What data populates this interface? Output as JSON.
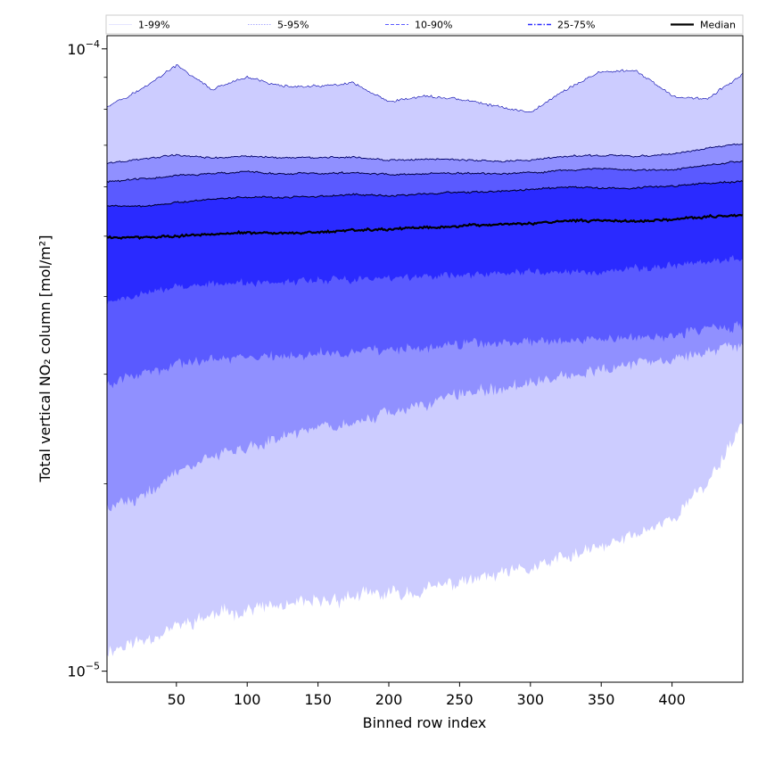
{
  "chart_data": {
    "type": "area",
    "xlabel": "Binned row index",
    "ylabel": "Total vertical NO₂ column [mol/m²]",
    "y_scale": "log",
    "xlim": [
      1,
      450
    ],
    "ylim": [
      9.6e-06,
      0.000105
    ],
    "x_ticks": [
      50,
      100,
      150,
      200,
      250,
      300,
      350,
      400
    ],
    "y_ticks": [
      {
        "value": 0.0001,
        "base": "10",
        "exp": "−4"
      },
      {
        "value": 1e-05,
        "base": "10",
        "exp": "−5"
      }
    ],
    "grid": false,
    "legend_position": "top",
    "x": [
      1,
      25,
      50,
      75,
      100,
      125,
      150,
      175,
      200,
      225,
      250,
      275,
      300,
      325,
      350,
      375,
      400,
      425,
      450
    ],
    "bands": [
      {
        "name": "1-99%",
        "color": "#ccccff",
        "lower": [
          1.08e-05,
          1.12e-05,
          1.18e-05,
          1.23e-05,
          1.26e-05,
          1.27e-05,
          1.29e-05,
          1.32e-05,
          1.33e-05,
          1.35e-05,
          1.39e-05,
          1.42e-05,
          1.46e-05,
          1.52e-05,
          1.58e-05,
          1.66e-05,
          1.76e-05,
          2e-05,
          2.5e-05
        ],
        "upper": [
          8.1e-05,
          8.6e-05,
          9.4e-05,
          8.6e-05,
          9e-05,
          8.7e-05,
          8.7e-05,
          8.8e-05,
          8.2e-05,
          8.4e-05,
          8.3e-05,
          8.1e-05,
          7.9e-05,
          8.6e-05,
          9.2e-05,
          9.2e-05,
          8.4e-05,
          8.3e-05,
          9.1e-05
        ]
      },
      {
        "name": "5-95%",
        "color": "#9090ff",
        "lower": [
          1.85e-05,
          1.9e-05,
          2.08e-05,
          2.22e-05,
          2.3e-05,
          2.37e-05,
          2.45e-05,
          2.52e-05,
          2.6e-05,
          2.68e-05,
          2.78e-05,
          2.84e-05,
          2.9e-05,
          2.98e-05,
          3.06e-05,
          3.1e-05,
          3.14e-05,
          3.28e-05,
          3.35e-05
        ]
      },
      {
        "name": "10-90%",
        "color": "#5a5aff",
        "lower": [
          2.9e-05,
          3e-05,
          3.1e-05,
          3.17e-05,
          3.23e-05,
          3.19e-05,
          3.24e-05,
          3.26e-05,
          3.28e-05,
          3.3e-05,
          3.34e-05,
          3.37e-05,
          3.38e-05,
          3.4e-05,
          3.42e-05,
          3.44e-05,
          3.46e-05,
          3.55e-05,
          3.6e-05
        ]
      },
      {
        "name": "25-75%",
        "color": "#2a2aff",
        "lower": [
          3.9e-05,
          4.03e-05,
          4.15e-05,
          4.2e-05,
          4.2e-05,
          4.22e-05,
          4.24e-05,
          4.26e-05,
          4.28e-05,
          4.3e-05,
          4.33e-05,
          4.36e-05,
          4.37e-05,
          4.38e-05,
          4.4e-05,
          4.44e-05,
          4.48e-05,
          4.55e-05,
          4.6e-05
        ]
      }
    ],
    "percentile_lines": [
      {
        "name": "5-95%",
        "values": [
          6.55e-05,
          6.65e-05,
          6.75e-05,
          6.68e-05,
          6.72e-05,
          6.69e-05,
          6.68e-05,
          6.7e-05,
          6.62e-05,
          6.65e-05,
          6.64e-05,
          6.6e-05,
          6.62e-05,
          6.72e-05,
          6.75e-05,
          6.72e-05,
          6.78e-05,
          6.92e-05,
          7.05e-05
        ]
      },
      {
        "name": "10-90%",
        "values": [
          6.12e-05,
          6.18e-05,
          6.26e-05,
          6.3e-05,
          6.35e-05,
          6.3e-05,
          6.3e-05,
          6.32e-05,
          6.28e-05,
          6.3e-05,
          6.32e-05,
          6.3e-05,
          6.32e-05,
          6.38e-05,
          6.42e-05,
          6.38e-05,
          6.4e-05,
          6.5e-05,
          6.6e-05
        ]
      },
      {
        "name": "25-75%",
        "values": [
          5.6e-05,
          5.58e-05,
          5.66e-05,
          5.73e-05,
          5.78e-05,
          5.77e-05,
          5.79e-05,
          5.84e-05,
          5.8e-05,
          5.85e-05,
          5.88e-05,
          5.9e-05,
          5.95e-05,
          6e-05,
          5.98e-05,
          5.98e-05,
          6.02e-05,
          6.08e-05,
          6.12e-05
        ]
      }
    ],
    "median": {
      "name": "Median",
      "color": "#000000",
      "values": [
        4.98e-05,
        4.98e-05,
        5e-05,
        5.04e-05,
        5.07e-05,
        5.06e-05,
        5.07e-05,
        5.11e-05,
        5.13e-05,
        5.16e-05,
        5.19e-05,
        5.22e-05,
        5.24e-05,
        5.29e-05,
        5.3e-05,
        5.28e-05,
        5.32e-05,
        5.37e-05,
        5.41e-05
      ]
    },
    "legend": [
      {
        "label": "1-99%",
        "color": "#ccccff",
        "style": "solid",
        "width": 0.6
      },
      {
        "label": "5-95%",
        "color": "#9090ff",
        "style": "dotted",
        "width": 0.8
      },
      {
        "label": "10-90%",
        "color": "#5a5aff",
        "style": "dashed",
        "width": 1
      },
      {
        "label": "25-75%",
        "color": "#2a2aff",
        "style": "dashdot",
        "width": 1.4
      },
      {
        "label": "Median",
        "color": "#000000",
        "style": "solid",
        "width": 2.2
      }
    ]
  }
}
